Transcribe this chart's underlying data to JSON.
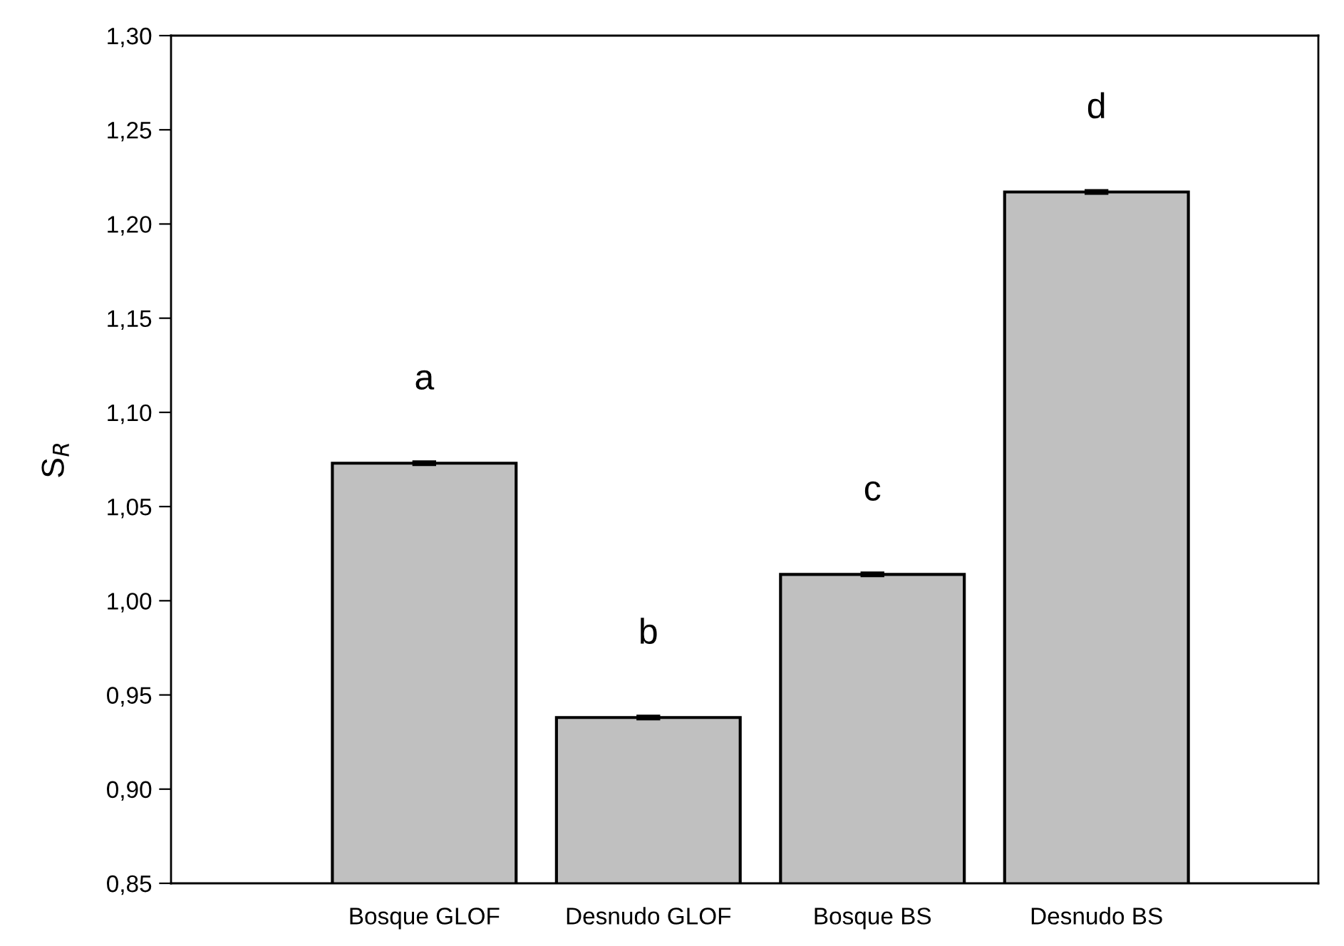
{
  "chart_data": {
    "type": "bar",
    "ylabel": "S$_{R}$",
    "categories": [
      "Bosque GLOF",
      "Desnudo GLOF",
      "Bosque BS",
      "Desnudo BS"
    ],
    "values": [
      1.073,
      0.938,
      1.014,
      1.217
    ],
    "errors": [
      0.001,
      0.001,
      0.001,
      0.001
    ],
    "color": "#c0c0c0",
    "ylim": [
      0.85,
      1.3
    ],
    "yticks": [
      {
        "value": 0.85,
        "label": "0,85"
      },
      {
        "value": 0.9,
        "label": "0,90"
      },
      {
        "value": 0.95,
        "label": "0,95"
      },
      {
        "value": 1.0,
        "label": "1,00"
      },
      {
        "value": 1.05,
        "label": "1,05"
      },
      {
        "value": 1.1,
        "label": "1,10"
      },
      {
        "value": 1.15,
        "label": "1,15"
      },
      {
        "value": 1.2,
        "label": "1,20"
      },
      {
        "value": 1.25,
        "label": "1,25"
      },
      {
        "value": 1.3,
        "label": "1,30"
      }
    ],
    "annotations": [
      "a",
      "b",
      "c",
      "d"
    ],
    "grid": false,
    "legend": false
  }
}
